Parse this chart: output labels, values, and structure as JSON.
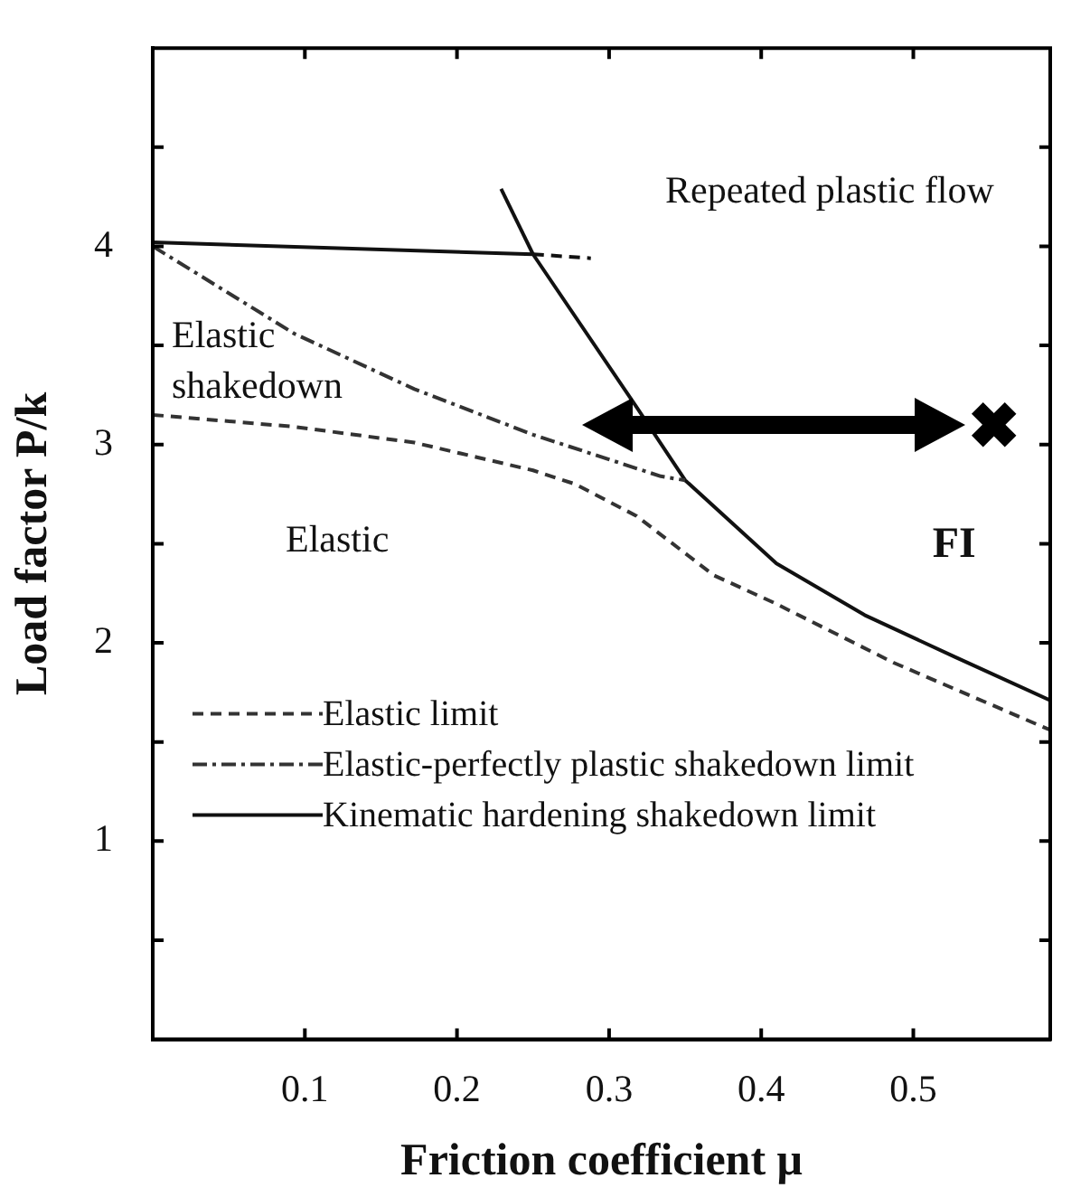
{
  "chart_data": {
    "type": "line",
    "xlabel": "Friction coefficient μ",
    "ylabel": "Load factor P/k",
    "xlim": [
      0,
      0.59
    ],
    "ylim": [
      0,
      5
    ],
    "xticks": [
      0.1,
      0.2,
      0.3,
      0.4,
      0.5
    ],
    "yticks": [
      {
        "value": 0.5,
        "label": null
      },
      1,
      {
        "value": 1.5,
        "label": null
      },
      2,
      {
        "value": 2.5,
        "label": null
      },
      3,
      {
        "value": 3.5,
        "label": null
      },
      4,
      {
        "value": 4.5,
        "label": null
      }
    ],
    "grid": false,
    "legend": "bottom left",
    "marker": "none",
    "annotations": [
      "Repeated plastic flow",
      "Elastic shakedown",
      "Elastic"
    ],
    "series": [
      {
        "name": "Elastic limit",
        "color": "#333333",
        "line_style": "dashed",
        "x": [
          0,
          0.093,
          0.172,
          0.25,
          0.278,
          0.318,
          0.369,
          0.409,
          0.487,
          0.59
        ],
        "values": [
          3.15,
          3.09,
          3.01,
          2.87,
          2.8,
          2.64,
          2.34,
          2.2,
          1.9,
          1.56
        ]
      },
      {
        "name": "Elastic-perfectly plastic shakedown limit",
        "color": "#333333",
        "line_style": "dashdot",
        "x": [
          0,
          0.093,
          0.172,
          0.25,
          0.334,
          0.35
        ],
        "values": [
          4.0,
          3.56,
          3.28,
          3.05,
          2.84,
          2.82
        ]
      },
      {
        "name": "Kinematic hardening shakedown limit",
        "color": "#111111",
        "line_style": "solid",
        "x": [
          0,
          0.25,
          0.318,
          0.35,
          0.41,
          0.468,
          0.527,
          0.59
        ],
        "values": [
          4.02,
          3.96,
          3.19,
          2.82,
          2.4,
          2.14,
          1.93,
          1.71
        ]
      },
      {
        "color": "#111111",
        "line_style": "solid",
        "x": [
          0.229,
          0.25
        ],
        "values": [
          4.29,
          3.96
        ]
      },
      {
        "color": "#111111",
        "line_style": "dashed",
        "x": [
          0.25,
          0.288
        ],
        "values": [
          3.96,
          3.94
        ]
      },
      {
        "type": "scatter",
        "name": "FI",
        "color": "#000000",
        "marker": "cross",
        "x": [
          0.553
        ],
        "values": [
          3.1
        ]
      }
    ]
  }
}
